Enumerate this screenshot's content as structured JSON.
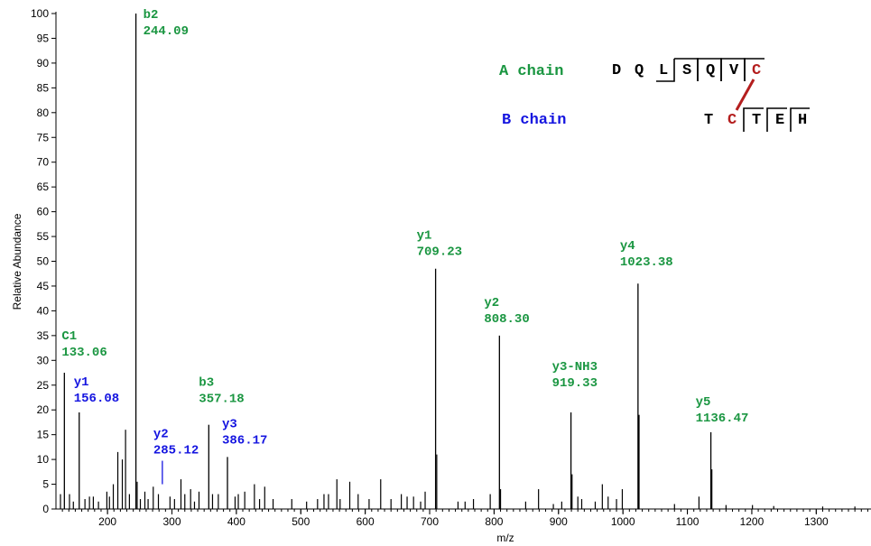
{
  "chart_data": {
    "type": "bar",
    "xlabel": "m/z",
    "ylabel": "Relative Abundance",
    "xlim": [
      120,
      1385
    ],
    "ylim": [
      0,
      100
    ],
    "x_ticks": [
      200,
      300,
      400,
      500,
      600,
      700,
      800,
      900,
      1000,
      1100,
      1200,
      1300
    ],
    "y_ticks": [
      0,
      5,
      10,
      15,
      20,
      25,
      30,
      35,
      40,
      45,
      50,
      55,
      60,
      65,
      70,
      75,
      80,
      85,
      90,
      95,
      100
    ],
    "colors": {
      "a_chain": "#1a9641",
      "b_chain": "#1515e0",
      "disulfide": "#b41e1e",
      "peaks": "#000000"
    },
    "labeled_peaks": [
      {
        "ion": "b2",
        "mz": "244.09",
        "x": 244.09,
        "y": 100,
        "chain": "A"
      },
      {
        "ion": "C1",
        "mz": "133.06",
        "x": 133.06,
        "y": 27.5,
        "chain": "A"
      },
      {
        "ion": "y1",
        "mz": "156.08",
        "x": 156.08,
        "y": 19.5,
        "chain": "B"
      },
      {
        "ion": "y2",
        "mz": "285.12",
        "x": 285.12,
        "y": 5,
        "chain": "B"
      },
      {
        "ion": "b3",
        "mz": "357.18",
        "x": 357.18,
        "y": 17,
        "chain": "A"
      },
      {
        "ion": "y3",
        "mz": "386.17",
        "x": 386.17,
        "y": 10.5,
        "chain": "B"
      },
      {
        "ion": "y1",
        "mz": "709.23",
        "x": 709.23,
        "y": 48.5,
        "chain": "A"
      },
      {
        "ion": "y2",
        "mz": "808.30",
        "x": 808.3,
        "y": 35,
        "chain": "A"
      },
      {
        "ion": "y3-NH3",
        "mz": "919.33",
        "x": 919.33,
        "y": 19.5,
        "chain": "A"
      },
      {
        "ion": "y4",
        "mz": "1023.38",
        "x": 1023.38,
        "y": 45.5,
        "chain": "A"
      },
      {
        "ion": "y5",
        "mz": "1136.47",
        "x": 1136.47,
        "y": 15.5,
        "chain": "A"
      }
    ],
    "minor_peaks": [
      {
        "x": 127,
        "y": 3
      },
      {
        "x": 141,
        "y": 3
      },
      {
        "x": 147,
        "y": 1.5
      },
      {
        "x": 165,
        "y": 2
      },
      {
        "x": 172,
        "y": 2.5
      },
      {
        "x": 178,
        "y": 2.5
      },
      {
        "x": 186,
        "y": 1.5
      },
      {
        "x": 199,
        "y": 3.5
      },
      {
        "x": 203,
        "y": 2.5
      },
      {
        "x": 209,
        "y": 5
      },
      {
        "x": 216,
        "y": 11.5
      },
      {
        "x": 223,
        "y": 10
      },
      {
        "x": 228,
        "y": 16
      },
      {
        "x": 234,
        "y": 3
      },
      {
        "x": 246,
        "y": 5.5
      },
      {
        "x": 251,
        "y": 2
      },
      {
        "x": 258,
        "y": 3.5
      },
      {
        "x": 263,
        "y": 2
      },
      {
        "x": 271,
        "y": 4.5
      },
      {
        "x": 279,
        "y": 3
      },
      {
        "x": 297,
        "y": 2.5
      },
      {
        "x": 304,
        "y": 2
      },
      {
        "x": 314,
        "y": 6
      },
      {
        "x": 320,
        "y": 3
      },
      {
        "x": 329,
        "y": 4
      },
      {
        "x": 335,
        "y": 1.5
      },
      {
        "x": 342,
        "y": 3.5
      },
      {
        "x": 363,
        "y": 3
      },
      {
        "x": 372,
        "y": 3
      },
      {
        "x": 398,
        "y": 2.5
      },
      {
        "x": 403,
        "y": 3
      },
      {
        "x": 413,
        "y": 3.5
      },
      {
        "x": 428,
        "y": 5
      },
      {
        "x": 436,
        "y": 2
      },
      {
        "x": 444,
        "y": 4.5
      },
      {
        "x": 457,
        "y": 2
      },
      {
        "x": 486,
        "y": 2
      },
      {
        "x": 509,
        "y": 1.5
      },
      {
        "x": 526,
        "y": 2
      },
      {
        "x": 536,
        "y": 3
      },
      {
        "x": 543,
        "y": 3
      },
      {
        "x": 556,
        "y": 6
      },
      {
        "x": 561,
        "y": 2
      },
      {
        "x": 576,
        "y": 5.5
      },
      {
        "x": 589,
        "y": 3
      },
      {
        "x": 606,
        "y": 2
      },
      {
        "x": 624,
        "y": 6
      },
      {
        "x": 640,
        "y": 2
      },
      {
        "x": 656,
        "y": 3
      },
      {
        "x": 665,
        "y": 2.5
      },
      {
        "x": 675,
        "y": 2.5
      },
      {
        "x": 686,
        "y": 1.5
      },
      {
        "x": 693,
        "y": 3.5
      },
      {
        "x": 711,
        "y": 11
      },
      {
        "x": 744,
        "y": 1.5
      },
      {
        "x": 755,
        "y": 1.5
      },
      {
        "x": 768,
        "y": 2
      },
      {
        "x": 794,
        "y": 3
      },
      {
        "x": 810,
        "y": 4
      },
      {
        "x": 849,
        "y": 1.5
      },
      {
        "x": 869,
        "y": 4
      },
      {
        "x": 892,
        "y": 1
      },
      {
        "x": 905,
        "y": 1.5
      },
      {
        "x": 921,
        "y": 7
      },
      {
        "x": 930,
        "y": 2.5
      },
      {
        "x": 936,
        "y": 2
      },
      {
        "x": 957,
        "y": 1.5
      },
      {
        "x": 968,
        "y": 5
      },
      {
        "x": 977,
        "y": 2.5
      },
      {
        "x": 990,
        "y": 2
      },
      {
        "x": 999,
        "y": 4
      },
      {
        "x": 1025,
        "y": 19
      },
      {
        "x": 1080,
        "y": 1
      },
      {
        "x": 1118,
        "y": 2.5
      },
      {
        "x": 1138,
        "y": 8
      },
      {
        "x": 1160,
        "y": 0.8
      },
      {
        "x": 1201,
        "y": 0.8
      },
      {
        "x": 1234,
        "y": 0.6
      },
      {
        "x": 1310,
        "y": 0.5
      },
      {
        "x": 1360,
        "y": 0.5
      }
    ]
  },
  "chains": {
    "a": {
      "label": "A chain",
      "residues": [
        "D",
        "Q",
        "L",
        "S",
        "Q",
        "V",
        "C"
      ]
    },
    "b": {
      "label": "B chain",
      "residues": [
        "T",
        "C",
        "T",
        "E",
        "H"
      ]
    }
  }
}
